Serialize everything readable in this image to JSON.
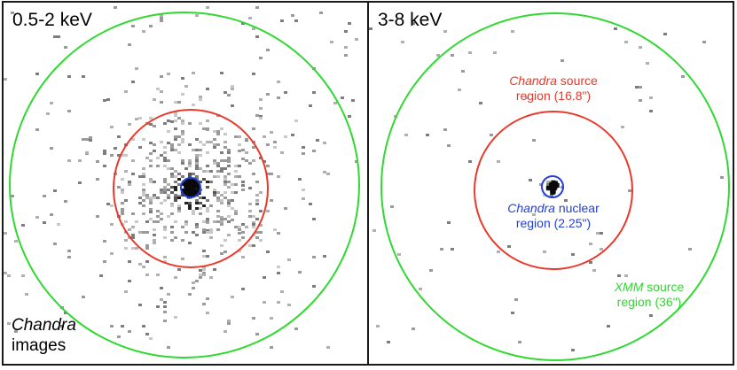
{
  "colors": {
    "xmm_region": "#32d832",
    "chandra_source_region": "#e8392b",
    "chandra_nuclear_region": "#2340d8",
    "counts": "#9a9a9a",
    "frame": "#1a1a1a"
  },
  "panels": [
    {
      "band_label": "0.5-2 keV",
      "corner_label": {
        "line1": "Chandra",
        "line2": "images"
      }
    },
    {
      "band_label": "3-8 keV",
      "chandra_source": {
        "name": "Chandra",
        "text1": " source",
        "text2": "region (16.8\")"
      },
      "chandra_nuclear": {
        "name": "Chandra",
        "text1": " nuclear",
        "text2": "region (2.25\")"
      },
      "xmm_source": {
        "name": "XMM",
        "text1": " source",
        "text2": "region (36\")"
      }
    }
  ]
}
